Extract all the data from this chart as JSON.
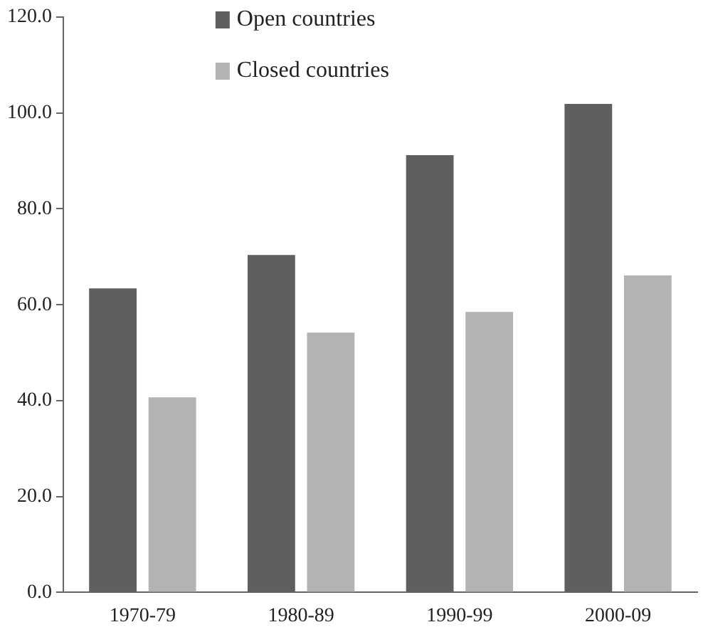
{
  "chart_data": {
    "type": "bar",
    "categories": [
      "1970-79",
      "1980-89",
      "1990-99",
      "2000-09"
    ],
    "series": [
      {
        "name": "Open countries",
        "color": "#5f5f5f",
        "values": [
          63.4,
          70.4,
          91.2,
          101.9
        ]
      },
      {
        "name": "Closed countries",
        "color": "#b3b3b3",
        "values": [
          40.7,
          54.2,
          58.5,
          66.1
        ]
      }
    ],
    "ylim": [
      0,
      120
    ],
    "yticks": [
      {
        "value": 0,
        "label": "0.0"
      },
      {
        "value": 20,
        "label": "20.0"
      },
      {
        "value": 40,
        "label": "40.0"
      },
      {
        "value": 60,
        "label": "60.0"
      },
      {
        "value": 80,
        "label": "80.0"
      },
      {
        "value": 100,
        "label": "100.0"
      },
      {
        "value": 120,
        "label": "120.0"
      }
    ],
    "grid": false,
    "legend": "top"
  }
}
